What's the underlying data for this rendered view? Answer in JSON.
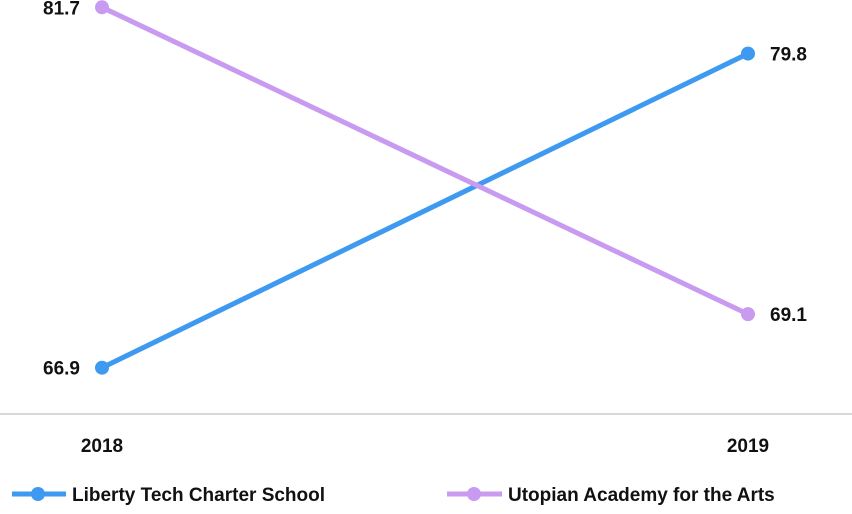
{
  "chart_data": {
    "type": "line",
    "categories": [
      "2018",
      "2019"
    ],
    "series": [
      {
        "name": "Liberty Tech Charter School",
        "values": [
          66.9,
          79.8
        ],
        "color": "#3d9af0"
      },
      {
        "name": "Utopian Academy for the Arts",
        "values": [
          81.7,
          69.1
        ],
        "color": "#c89af0"
      }
    ],
    "title": "",
    "xlabel": "",
    "ylabel": "",
    "ylim": [
      65,
      82
    ],
    "grid": false,
    "legend_position": "bottom",
    "axis_color": "#d9d9d9"
  }
}
